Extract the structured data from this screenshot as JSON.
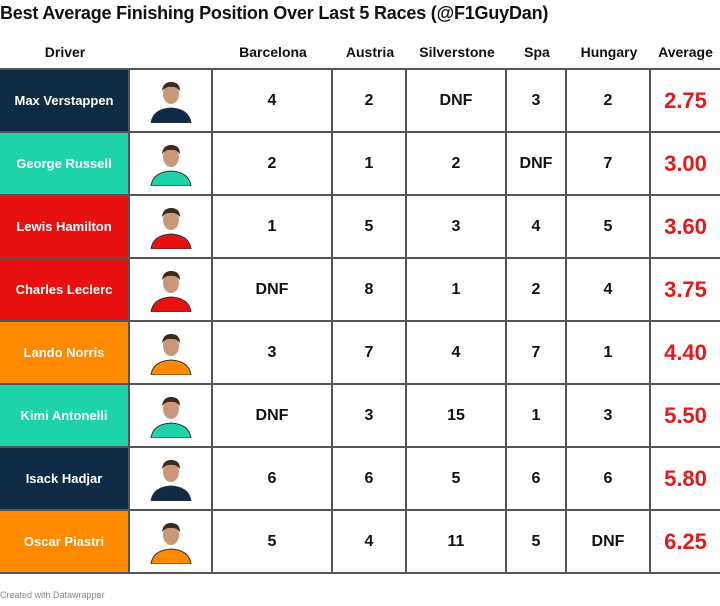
{
  "header": {
    "title": "Best Average Finishing Position Over Last 5 Races (@F1GuyDan)"
  },
  "table": {
    "columns": [
      "Driver",
      "Barcelona",
      "Austria",
      "Silverstone",
      "Spa",
      "Hungary",
      "Average"
    ],
    "rows": [
      {
        "driver": "Max Verstappen",
        "color": "#0f2a45",
        "results": [
          4,
          2,
          "DNF",
          3,
          2
        ],
        "average": "2.75"
      },
      {
        "driver": "George Russell",
        "color": "#1dd3a7",
        "results": [
          2,
          1,
          2,
          "DNF",
          7
        ],
        "average": "3.00"
      },
      {
        "driver": "Lewis Hamilton",
        "color": "#e8110f",
        "results": [
          1,
          5,
          3,
          4,
          5
        ],
        "average": "3.60"
      },
      {
        "driver": "Charles Leclerc",
        "color": "#e8110f",
        "results": [
          "DNF",
          8,
          1,
          2,
          4
        ],
        "average": "3.75"
      },
      {
        "driver": "Lando Norris",
        "color": "#ff8a00",
        "results": [
          3,
          7,
          4,
          7,
          1
        ],
        "average": "4.40"
      },
      {
        "driver": "Kimi Antonelli",
        "color": "#1dd3a7",
        "results": [
          "DNF",
          3,
          15,
          1,
          3
        ],
        "average": "5.50"
      },
      {
        "driver": "Isack Hadjar",
        "color": "#0f2a45",
        "results": [
          6,
          6,
          5,
          6,
          6
        ],
        "average": "5.80"
      },
      {
        "driver": "Oscar Piastri",
        "color": "#ff8a00",
        "results": [
          5,
          4,
          11,
          5,
          "DNF"
        ],
        "average": "6.25"
      }
    ]
  },
  "footer": {
    "note": "Created with Datawrapper"
  }
}
